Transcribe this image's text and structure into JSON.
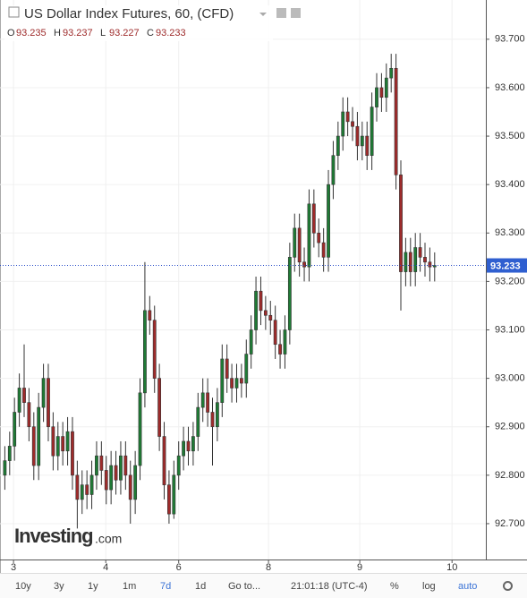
{
  "header": {
    "title": "US Dollar Index Futures, 60, (CFD)",
    "ohlc": [
      {
        "key": "O",
        "value": "93.235"
      },
      {
        "key": "H",
        "value": "93.237"
      },
      {
        "key": "L",
        "value": "93.227"
      },
      {
        "key": "C",
        "value": "93.233"
      }
    ]
  },
  "logo": {
    "name": "Investing",
    "suffix": ".com"
  },
  "toolbar": {
    "buttons": [
      "10y",
      "3y",
      "1y",
      "1m",
      "7d",
      "1d",
      "Go to..."
    ],
    "time": "21:01:18 (UTC-4)",
    "options": [
      "%",
      "log",
      "auto"
    ],
    "active": "7d"
  },
  "chart_data": {
    "type": "candlestick",
    "up_color": "#1f7a35",
    "down_color": "#9e2b2b",
    "last_price": 93.233,
    "xlim": [
      -1,
      99.6
    ],
    "xticks": [
      {
        "value": 1.8,
        "label": "3"
      },
      {
        "value": 20.9,
        "label": "4"
      },
      {
        "value": 36.0,
        "label": "6"
      },
      {
        "value": 54.6,
        "label": "8"
      },
      {
        "value": 73.5,
        "label": "9"
      },
      {
        "value": 92.6,
        "label": "10"
      }
    ],
    "ylim": [
      92.626,
      93.781
    ],
    "yticks": [
      {
        "value": 92.7,
        "label": "92.700"
      },
      {
        "value": 92.8,
        "label": "92.800"
      },
      {
        "value": 92.9,
        "label": "92.900"
      },
      {
        "value": 93.0,
        "label": "93.000"
      },
      {
        "value": 93.1,
        "label": "93.100"
      },
      {
        "value": 93.2,
        "label": "93.200"
      },
      {
        "value": 93.3,
        "label": "93.300"
      },
      {
        "value": 93.4,
        "label": "93.400"
      },
      {
        "value": 93.5,
        "label": "93.500"
      },
      {
        "value": 93.6,
        "label": "93.600"
      },
      {
        "value": 93.7,
        "label": "93.700"
      }
    ],
    "open": [
      92.8,
      92.83,
      92.86,
      92.93,
      92.98,
      92.95,
      92.9,
      92.82,
      92.94,
      93.0,
      92.9,
      92.84,
      92.88,
      92.85,
      92.89,
      92.8,
      92.75,
      92.78,
      92.76,
      92.8,
      92.84,
      92.81,
      92.77,
      92.82,
      92.79,
      92.84,
      92.8,
      92.75,
      92.82,
      92.97,
      93.14,
      93.12,
      93.0,
      92.88,
      92.78,
      92.72,
      92.8,
      92.84,
      92.87,
      92.85,
      92.88,
      92.94,
      92.97,
      92.93,
      92.9,
      92.95,
      93.04,
      93.0,
      92.98,
      93.0,
      92.99,
      93.05,
      93.1,
      93.18,
      93.14,
      93.13,
      93.12,
      93.07,
      93.05,
      93.1,
      93.25,
      93.31,
      93.24,
      93.23,
      93.36,
      93.3,
      93.28,
      93.25,
      93.4,
      93.46,
      93.5,
      93.55,
      93.53,
      93.52,
      93.48,
      93.5,
      93.46,
      93.56,
      93.6,
      93.58,
      93.62,
      93.64,
      93.42,
      93.22,
      93.26,
      93.22,
      93.27,
      93.25,
      93.24,
      93.23
    ],
    "high": [
      92.86,
      92.89,
      92.96,
      93.01,
      93.07,
      92.98,
      92.93,
      92.97,
      93.03,
      93.03,
      92.93,
      92.91,
      92.91,
      92.92,
      92.92,
      92.83,
      92.81,
      92.81,
      92.83,
      92.87,
      92.87,
      92.84,
      92.85,
      92.85,
      92.87,
      92.87,
      92.83,
      92.85,
      93.0,
      93.24,
      93.17,
      93.15,
      93.03,
      92.91,
      92.81,
      92.83,
      92.87,
      92.9,
      92.9,
      92.91,
      92.97,
      93.0,
      93.0,
      92.96,
      92.98,
      93.07,
      93.07,
      93.03,
      93.03,
      93.03,
      93.08,
      93.13,
      93.21,
      93.21,
      93.17,
      93.16,
      93.15,
      93.1,
      93.13,
      93.28,
      93.34,
      93.34,
      93.27,
      93.39,
      93.39,
      93.33,
      93.31,
      93.43,
      93.49,
      93.53,
      93.58,
      93.58,
      93.56,
      93.55,
      93.53,
      93.53,
      93.59,
      93.63,
      93.63,
      93.65,
      93.67,
      93.67,
      93.45,
      93.29,
      93.29,
      93.3,
      93.3,
      93.28,
      93.27,
      93.26
    ],
    "low": [
      92.77,
      92.8,
      92.83,
      92.9,
      92.92,
      92.87,
      92.79,
      92.79,
      92.91,
      92.87,
      92.81,
      92.81,
      92.82,
      92.82,
      92.77,
      92.69,
      92.72,
      92.73,
      92.73,
      92.77,
      92.78,
      92.74,
      92.74,
      92.76,
      92.76,
      92.77,
      92.7,
      92.72,
      92.79,
      92.94,
      93.09,
      92.97,
      92.85,
      92.75,
      92.7,
      92.71,
      92.77,
      92.81,
      92.82,
      92.82,
      92.85,
      92.91,
      92.9,
      92.82,
      92.87,
      92.92,
      92.97,
      92.95,
      92.95,
      92.96,
      92.96,
      93.02,
      93.07,
      93.11,
      93.1,
      93.09,
      93.04,
      93.02,
      93.02,
      93.07,
      93.22,
      93.21,
      93.2,
      93.2,
      93.27,
      93.25,
      93.22,
      93.22,
      93.37,
      93.43,
      93.47,
      93.5,
      93.49,
      93.45,
      93.45,
      93.43,
      93.43,
      93.53,
      93.55,
      93.55,
      93.59,
      93.39,
      93.14,
      93.19,
      93.19,
      93.19,
      93.22,
      93.21,
      93.2,
      93.2
    ],
    "close": [
      92.83,
      92.86,
      92.93,
      92.98,
      92.95,
      92.9,
      92.82,
      92.94,
      93.0,
      92.9,
      92.84,
      92.88,
      92.85,
      92.89,
      92.8,
      92.75,
      92.78,
      92.76,
      92.8,
      92.84,
      92.81,
      92.77,
      92.82,
      92.79,
      92.84,
      92.8,
      92.75,
      92.82,
      92.97,
      93.14,
      93.12,
      93.0,
      92.88,
      92.78,
      92.72,
      92.8,
      92.84,
      92.87,
      92.85,
      92.88,
      92.94,
      92.97,
      92.93,
      92.9,
      92.95,
      93.04,
      93.0,
      92.98,
      93.0,
      92.99,
      93.05,
      93.1,
      93.18,
      93.14,
      93.13,
      93.12,
      93.07,
      93.05,
      93.1,
      93.25,
      93.31,
      93.24,
      93.23,
      93.36,
      93.3,
      93.28,
      93.25,
      93.4,
      93.46,
      93.5,
      93.55,
      93.53,
      93.52,
      93.48,
      93.5,
      93.46,
      93.56,
      93.6,
      93.58,
      93.62,
      93.64,
      93.42,
      93.22,
      93.26,
      93.22,
      93.27,
      93.25,
      93.24,
      93.23,
      93.233
    ]
  }
}
